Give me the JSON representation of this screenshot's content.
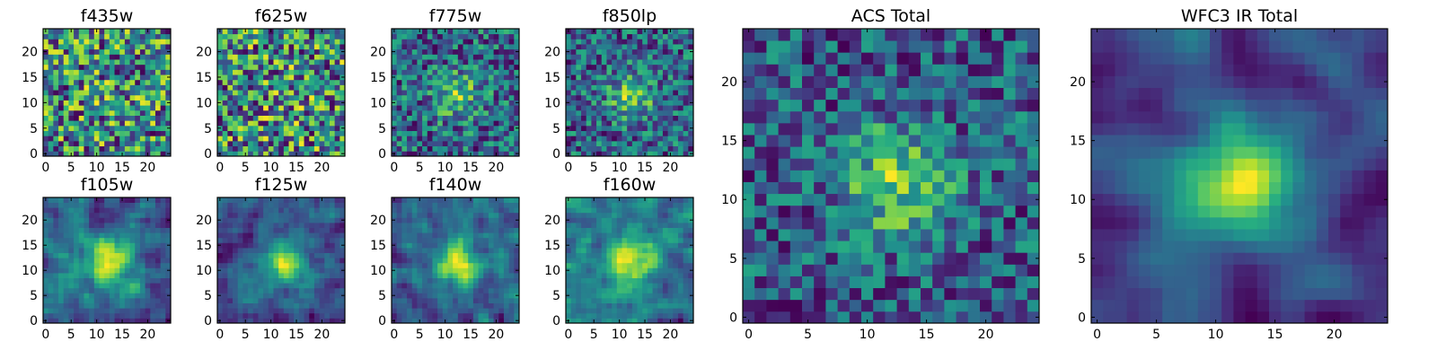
{
  "figure": {
    "colormap": "viridis",
    "grid_size": 25
  },
  "chart_data": [
    {
      "type": "heatmap",
      "title": "f435w",
      "seed": 11,
      "peak": 0.05,
      "noise": 0.85,
      "smooth": 0,
      "x_ticks": [
        "0",
        "5",
        "10",
        "15",
        "20"
      ],
      "y_ticks": [
        "0",
        "5",
        "10",
        "15",
        "20"
      ],
      "xlim": [
        0,
        25
      ],
      "ylim": [
        0,
        25
      ]
    },
    {
      "type": "heatmap",
      "title": "f625w",
      "seed": 23,
      "peak": 0.05,
      "noise": 0.85,
      "smooth": 0,
      "x_ticks": [
        "0",
        "5",
        "10",
        "15",
        "20"
      ],
      "y_ticks": [
        "0",
        "5",
        "10",
        "15",
        "20"
      ],
      "xlim": [
        0,
        25
      ],
      "ylim": [
        0,
        25
      ]
    },
    {
      "type": "heatmap",
      "title": "f775w",
      "seed": 37,
      "peak": 0.35,
      "noise": 0.75,
      "smooth": 0,
      "x_ticks": [
        "0",
        "5",
        "10",
        "15",
        "20"
      ],
      "y_ticks": [
        "0",
        "5",
        "10",
        "15",
        "20"
      ],
      "xlim": [
        0,
        25
      ],
      "ylim": [
        0,
        25
      ]
    },
    {
      "type": "heatmap",
      "title": "f850lp",
      "seed": 41,
      "peak": 0.4,
      "noise": 0.75,
      "smooth": 0,
      "x_ticks": [
        "0",
        "5",
        "10",
        "15",
        "20"
      ],
      "y_ticks": [
        "0",
        "5",
        "10",
        "15",
        "20"
      ],
      "xlim": [
        0,
        25
      ],
      "ylim": [
        0,
        25
      ]
    },
    {
      "type": "heatmap",
      "title": "f105w",
      "seed": 53,
      "peak": 0.55,
      "noise": 0.6,
      "smooth": 1,
      "x_ticks": [
        "0",
        "5",
        "10",
        "15",
        "20"
      ],
      "y_ticks": [
        "0",
        "5",
        "10",
        "15",
        "20"
      ],
      "xlim": [
        0,
        25
      ],
      "ylim": [
        0,
        25
      ]
    },
    {
      "type": "heatmap",
      "title": "f125w",
      "seed": 67,
      "peak": 0.6,
      "noise": 0.6,
      "smooth": 1,
      "x_ticks": [
        "0",
        "5",
        "10",
        "15",
        "20"
      ],
      "y_ticks": [
        "0",
        "5",
        "10",
        "15",
        "20"
      ],
      "xlim": [
        0,
        25
      ],
      "ylim": [
        0,
        25
      ]
    },
    {
      "type": "heatmap",
      "title": "f140w",
      "seed": 79,
      "peak": 0.6,
      "noise": 0.6,
      "smooth": 1,
      "x_ticks": [
        "0",
        "5",
        "10",
        "15",
        "20"
      ],
      "y_ticks": [
        "0",
        "5",
        "10",
        "15",
        "20"
      ],
      "xlim": [
        0,
        25
      ],
      "ylim": [
        0,
        25
      ]
    },
    {
      "type": "heatmap",
      "title": "f160w",
      "seed": 83,
      "peak": 0.6,
      "noise": 0.65,
      "smooth": 1,
      "x_ticks": [
        "0",
        "5",
        "10",
        "15",
        "20"
      ],
      "y_ticks": [
        "0",
        "5",
        "10",
        "15",
        "20"
      ],
      "xlim": [
        0,
        25
      ],
      "ylim": [
        0,
        25
      ]
    },
    {
      "type": "heatmap",
      "title": "ACS Total",
      "seed": 97,
      "peak": 0.5,
      "noise": 0.7,
      "smooth": 0,
      "x_ticks": [
        "0",
        "5",
        "10",
        "15",
        "20"
      ],
      "y_ticks": [
        "0",
        "5",
        "10",
        "15",
        "20"
      ],
      "xlim": [
        0,
        25
      ],
      "ylim": [
        0,
        25
      ]
    },
    {
      "type": "heatmap",
      "title": "WFC3 IR Total",
      "seed": 101,
      "peak": 0.75,
      "noise": 0.45,
      "smooth": 2,
      "x_ticks": [
        "0",
        "5",
        "10",
        "15",
        "20"
      ],
      "y_ticks": [
        "0",
        "5",
        "10",
        "15",
        "20"
      ],
      "xlim": [
        0,
        25
      ],
      "ylim": [
        0,
        25
      ]
    }
  ]
}
